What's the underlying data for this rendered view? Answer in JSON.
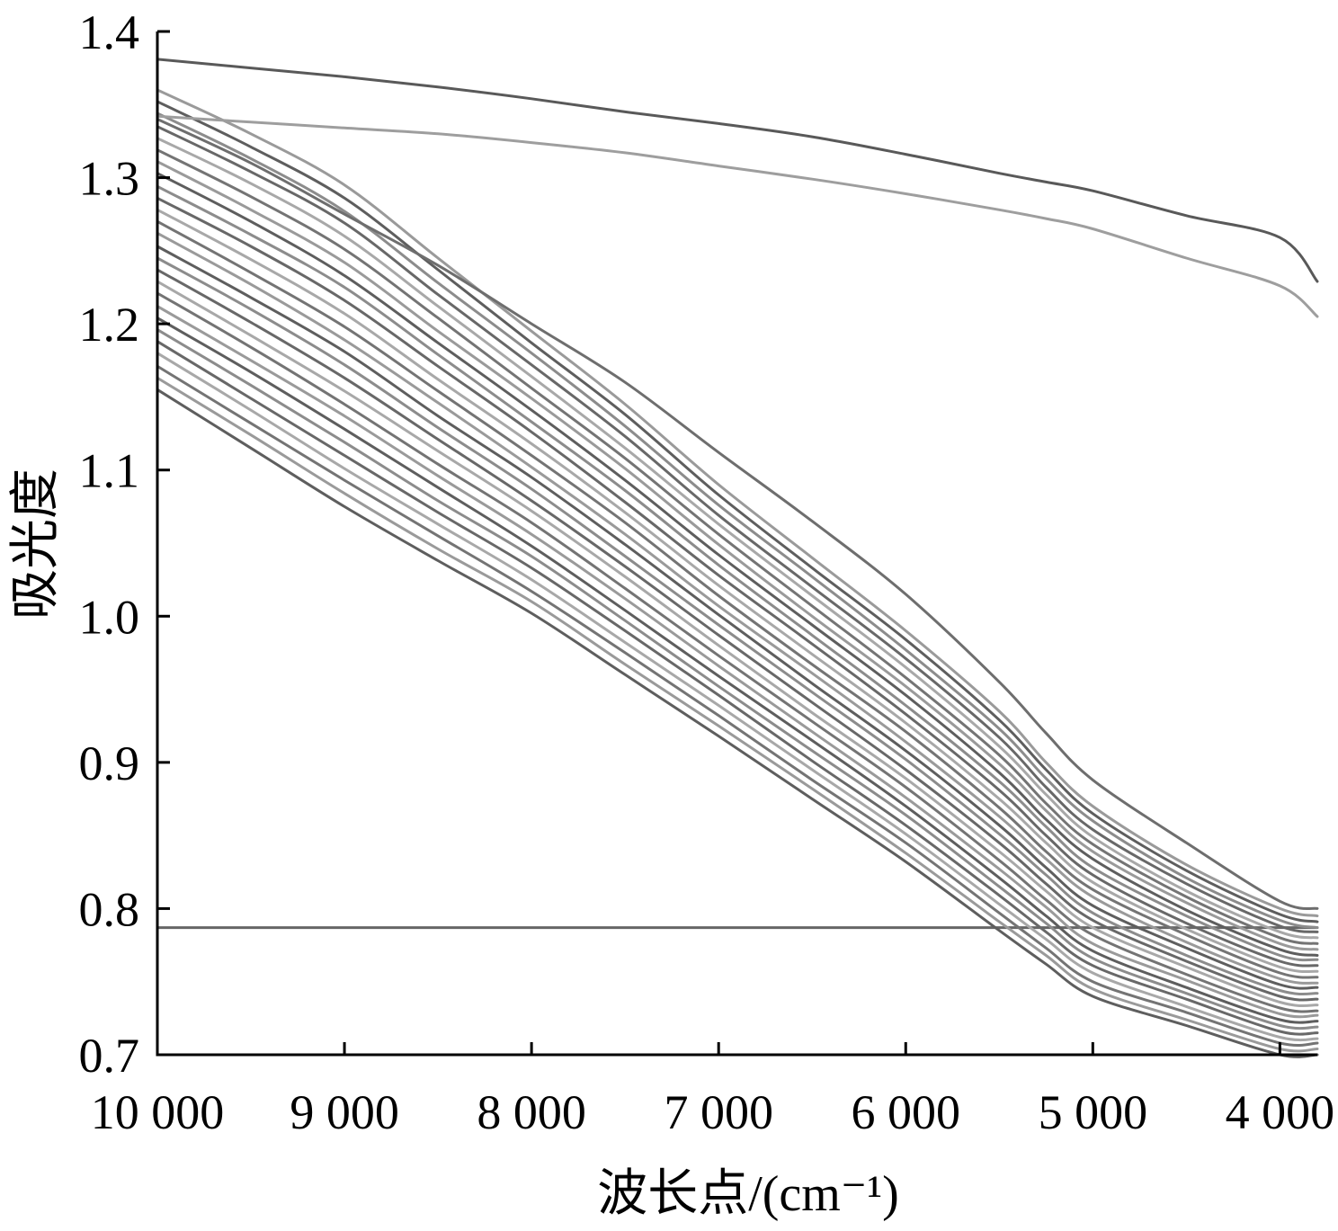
{
  "chart_data": {
    "type": "line",
    "xlabel": "波长点/(cm⁻¹)",
    "ylabel": "吸光度",
    "xlim": [
      10000,
      3800
    ],
    "x_reversed": true,
    "ylim": [
      0.7,
      1.4
    ],
    "grid": false,
    "legend": "none",
    "xticks": [
      10000,
      9000,
      8000,
      7000,
      6000,
      5000,
      4000
    ],
    "xtick_labels": [
      "10 000",
      "9 000",
      "8 000",
      "7 000",
      "6 000",
      "5 000",
      "4 000"
    ],
    "yticks": [
      1.4,
      1.3,
      1.2,
      1.1,
      1.0,
      0.9,
      0.8,
      0.7
    ],
    "ytick_labels": [
      "1.4",
      "1.3",
      "1.2",
      "1.1",
      "1.0",
      "0.9",
      "0.8",
      "0.7"
    ],
    "x": [
      10000,
      9500,
      9000,
      8500,
      8000,
      7500,
      7000,
      6500,
      6000,
      5500,
      5250,
      5000,
      4500,
      4000,
      3800
    ],
    "series": [
      {
        "color": "#666666",
        "values": [
          0.787,
          0.787,
          0.787,
          0.787,
          0.787,
          0.787,
          0.787,
          0.787,
          0.787,
          0.787,
          0.787,
          0.787,
          0.787,
          0.787,
          0.787
        ]
      },
      {
        "color": "#5e5e5e",
        "values": [
          1.155,
          1.115,
          1.075,
          1.038,
          1.002,
          0.96,
          0.918,
          0.875,
          0.832,
          0.785,
          0.762,
          0.74,
          0.72,
          0.7,
          0.7
        ]
      },
      {
        "color": "#9a9a9a",
        "values": [
          1.163,
          1.124,
          1.084,
          1.046,
          1.01,
          0.967,
          0.925,
          0.882,
          0.838,
          0.791,
          0.768,
          0.745,
          0.724,
          0.704,
          0.704
        ]
      },
      {
        "color": "#747474",
        "values": [
          1.171,
          1.132,
          1.093,
          1.055,
          1.017,
          0.975,
          0.932,
          0.888,
          0.845,
          0.797,
          0.773,
          0.75,
          0.729,
          0.708,
          0.708
        ]
      },
      {
        "color": "#a8a8a8",
        "values": [
          1.18,
          1.141,
          1.101,
          1.063,
          1.025,
          0.982,
          0.939,
          0.895,
          0.851,
          0.803,
          0.779,
          0.756,
          0.733,
          0.712,
          0.711
        ]
      },
      {
        "color": "#686868",
        "values": [
          1.188,
          1.149,
          1.11,
          1.071,
          1.033,
          0.99,
          0.946,
          0.901,
          0.857,
          0.809,
          0.784,
          0.761,
          0.738,
          0.716,
          0.715
        ]
      },
      {
        "color": "#8c8c8c",
        "values": [
          1.196,
          1.158,
          1.119,
          1.079,
          1.041,
          0.997,
          0.952,
          0.908,
          0.864,
          0.815,
          0.79,
          0.766,
          0.742,
          0.72,
          0.719
        ]
      },
      {
        "color": "#5e5e5e",
        "values": [
          1.204,
          1.167,
          1.128,
          1.088,
          1.048,
          1.004,
          0.959,
          0.915,
          0.87,
          0.821,
          0.795,
          0.771,
          0.746,
          0.724,
          0.723
        ]
      },
      {
        "color": "#9a9a9a",
        "values": [
          1.212,
          1.175,
          1.137,
          1.096,
          1.056,
          1.012,
          0.966,
          0.921,
          0.876,
          0.827,
          0.801,
          0.776,
          0.751,
          0.728,
          0.727
        ]
      },
      {
        "color": "#747474",
        "values": [
          1.221,
          1.184,
          1.145,
          1.104,
          1.064,
          1.019,
          0.973,
          0.928,
          0.883,
          0.833,
          0.806,
          0.782,
          0.755,
          0.732,
          0.73
        ]
      },
      {
        "color": "#a8a8a8",
        "values": [
          1.229,
          1.192,
          1.154,
          1.113,
          1.072,
          1.027,
          0.98,
          0.934,
          0.889,
          0.839,
          0.812,
          0.787,
          0.76,
          0.736,
          0.734
        ]
      },
      {
        "color": "#686868",
        "values": [
          1.237,
          1.201,
          1.163,
          1.121,
          1.079,
          1.034,
          0.987,
          0.941,
          0.895,
          0.845,
          0.817,
          0.792,
          0.764,
          0.74,
          0.738
        ]
      },
      {
        "color": "#8c8c8c",
        "values": [
          1.245,
          1.21,
          1.172,
          1.129,
          1.087,
          1.041,
          0.994,
          0.948,
          0.902,
          0.851,
          0.823,
          0.797,
          0.768,
          0.744,
          0.742
        ]
      },
      {
        "color": "#5e5e5e",
        "values": [
          1.253,
          1.218,
          1.181,
          1.137,
          1.095,
          1.049,
          1.001,
          0.954,
          0.908,
          0.857,
          0.828,
          0.802,
          0.773,
          0.748,
          0.746
        ]
      },
      {
        "color": "#9a9a9a",
        "values": [
          1.262,
          1.227,
          1.189,
          1.146,
          1.102,
          1.056,
          1.007,
          0.961,
          0.914,
          0.863,
          0.834,
          0.808,
          0.777,
          0.752,
          0.749
        ]
      },
      {
        "color": "#747474",
        "values": [
          1.27,
          1.235,
          1.198,
          1.154,
          1.11,
          1.064,
          1.014,
          0.967,
          0.921,
          0.869,
          0.839,
          0.813,
          0.782,
          0.756,
          0.753
        ]
      },
      {
        "color": "#a8a8a8",
        "values": [
          1.278,
          1.244,
          1.207,
          1.162,
          1.118,
          1.071,
          1.021,
          0.974,
          0.927,
          0.875,
          0.845,
          0.818,
          0.786,
          0.76,
          0.757
        ]
      },
      {
        "color": "#686868",
        "values": [
          1.286,
          1.253,
          1.216,
          1.171,
          1.126,
          1.078,
          1.028,
          0.981,
          0.933,
          0.881,
          0.85,
          0.823,
          0.79,
          0.764,
          0.761
        ]
      },
      {
        "color": "#8c8c8c",
        "values": [
          1.294,
          1.261,
          1.225,
          1.179,
          1.133,
          1.086,
          1.035,
          0.987,
          0.939,
          0.887,
          0.856,
          0.828,
          0.795,
          0.768,
          0.765
        ]
      },
      {
        "color": "#5e5e5e",
        "values": [
          1.303,
          1.27,
          1.233,
          1.187,
          1.141,
          1.093,
          1.042,
          0.994,
          0.946,
          0.893,
          0.861,
          0.834,
          0.799,
          0.772,
          0.768
        ]
      },
      {
        "color": "#9a9a9a",
        "values": [
          1.311,
          1.278,
          1.242,
          1.195,
          1.149,
          1.101,
          1.049,
          1.0,
          0.952,
          0.899,
          0.867,
          0.839,
          0.804,
          0.776,
          0.772
        ]
      },
      {
        "color": "#747474",
        "values": [
          1.319,
          1.287,
          1.251,
          1.204,
          1.156,
          1.108,
          1.056,
          1.007,
          0.958,
          0.905,
          0.872,
          0.844,
          0.808,
          0.78,
          0.776
        ]
      },
      {
        "color": "#a8a8a8",
        "values": [
          1.327,
          1.296,
          1.26,
          1.212,
          1.164,
          1.115,
          1.063,
          1.014,
          0.965,
          0.911,
          0.878,
          0.849,
          0.812,
          0.784,
          0.78
        ]
      },
      {
        "color": "#686868",
        "values": [
          1.335,
          1.304,
          1.269,
          1.22,
          1.172,
          1.123,
          1.069,
          1.02,
          0.971,
          0.917,
          0.883,
          0.854,
          0.817,
          0.788,
          0.784
        ]
      },
      {
        "color": "#8c8c8c",
        "values": [
          1.344,
          1.313,
          1.277,
          1.228,
          1.18,
          1.13,
          1.076,
          1.027,
          0.977,
          0.923,
          0.889,
          0.86,
          0.821,
          0.792,
          0.787
        ]
      },
      {
        "color": "#5e5e5e",
        "values": [
          1.352,
          1.321,
          1.286,
          1.237,
          1.187,
          1.138,
          1.083,
          1.033,
          0.984,
          0.929,
          0.895,
          0.865,
          0.826,
          0.796,
          0.791
        ]
      },
      {
        "color": "#9a9a9a",
        "values": [
          1.36,
          1.33,
          1.295,
          1.245,
          1.195,
          1.145,
          1.09,
          1.04,
          0.99,
          0.935,
          0.9,
          0.87,
          0.83,
          0.8,
          0.795
        ]
      },
      {
        "color": "#6e6e6e",
        "values": [
          1.34,
          1.31,
          1.275,
          1.24,
          1.2,
          1.16,
          1.112,
          1.065,
          1.015,
          0.955,
          0.92,
          0.888,
          0.845,
          0.805,
          0.8
        ]
      },
      {
        "color": "#9e9e9e",
        "values": [
          1.342,
          1.338,
          1.334,
          1.33,
          1.324,
          1.317,
          1.308,
          1.299,
          1.289,
          1.278,
          1.272,
          1.265,
          1.245,
          1.226,
          1.205
        ]
      },
      {
        "color": "#595959",
        "values": [
          1.381,
          1.375,
          1.369,
          1.362,
          1.354,
          1.345,
          1.337,
          1.328,
          1.316,
          1.303,
          1.297,
          1.291,
          1.274,
          1.259,
          1.229
        ]
      }
    ]
  }
}
